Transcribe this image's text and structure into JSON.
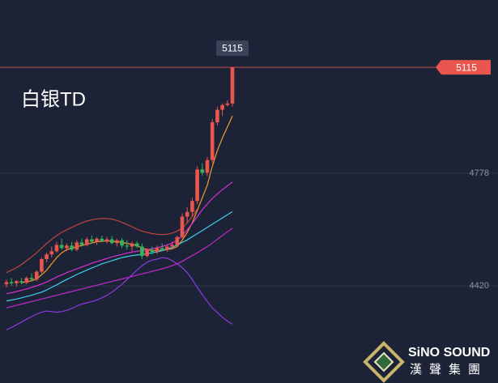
{
  "chart_data": {
    "type": "candlestick",
    "title": "白银TD",
    "ylim": [
      4111,
      5329
    ],
    "yticks": [
      4420,
      4778
    ],
    "grid": true,
    "up_color": "#e9554f",
    "down_color": "#35b35a",
    "last_price": 5115,
    "last_price_color": "#e9554f",
    "open": [
      4425,
      4432,
      4428,
      4435,
      4430,
      4445,
      4440,
      4465,
      4505,
      4520,
      4530,
      4550,
      4540,
      4548,
      4535,
      4558,
      4550,
      4568,
      4560,
      4570,
      4562,
      4568,
      4556,
      4565,
      4548,
      4545,
      4555,
      4545,
      4515,
      4535,
      4528,
      4540,
      4535,
      4545,
      4550,
      4575,
      4640,
      4655,
      4690,
      4790,
      4780,
      4820,
      4940,
      4980,
      4995,
      5000
    ],
    "high": [
      4440,
      4445,
      4438,
      4445,
      4450,
      4460,
      4470,
      4510,
      4525,
      4545,
      4560,
      4570,
      4555,
      4560,
      4565,
      4570,
      4575,
      4580,
      4575,
      4580,
      4575,
      4578,
      4570,
      4572,
      4565,
      4560,
      4562,
      4555,
      4540,
      4545,
      4548,
      4555,
      4550,
      4560,
      4580,
      4650,
      4670,
      4700,
      4800,
      4810,
      4830,
      4950,
      4990,
      5000,
      5010,
      5115
    ],
    "low": [
      4415,
      4420,
      4418,
      4425,
      4425,
      4435,
      4435,
      4460,
      4495,
      4510,
      4525,
      4535,
      4530,
      4530,
      4530,
      4545,
      4545,
      4555,
      4550,
      4558,
      4555,
      4552,
      4545,
      4540,
      4535,
      4530,
      4540,
      4505,
      4510,
      4520,
      4522,
      4530,
      4528,
      4535,
      4545,
      4570,
      4620,
      4640,
      4680,
      4770,
      4770,
      4810,
      4930,
      4960,
      4990,
      4990
    ],
    "close": [
      4432,
      4428,
      4435,
      4430,
      4445,
      4440,
      4465,
      4505,
      4520,
      4530,
      4550,
      4540,
      4548,
      4535,
      4558,
      4550,
      4568,
      4560,
      4570,
      4562,
      4568,
      4556,
      4565,
      4548,
      4545,
      4555,
      4545,
      4515,
      4535,
      4528,
      4540,
      4535,
      4545,
      4550,
      4575,
      4640,
      4655,
      4690,
      4790,
      4780,
      4820,
      4940,
      4980,
      4995,
      5000,
      5115
    ],
    "series": [
      {
        "color": "#f39a2c",
        "values": [
          null,
          null,
          null,
          4430,
          4433,
          4436,
          4442,
          4455,
          4470,
          4490,
          4510,
          4525,
          4535,
          4540,
          4545,
          4548,
          4552,
          4556,
          4560,
          4562,
          4563,
          4562,
          4560,
          4558,
          4555,
          4552,
          4548,
          4540,
          4535,
          4532,
          4532,
          4533,
          4535,
          4538,
          4545,
          4565,
          4590,
          4620,
          4660,
          4700,
          4740,
          4800,
          4850,
          4890,
          4925,
          4960
        ]
      },
      {
        "color": "#3fd0e8",
        "values": [
          4372,
          4375,
          4378,
          4382,
          4386,
          4390,
          4395,
          4400,
          4407,
          4415,
          4423,
          4432,
          4440,
          4448,
          4456,
          4463,
          4470,
          4477,
          4483,
          4490,
          4495,
          4500,
          4505,
          4510,
          4513,
          4516,
          4518,
          4520,
          4522,
          4525,
          4528,
          4532,
          4537,
          4542,
          4550,
          4558,
          4566,
          4576,
          4586,
          4596,
          4606,
          4616,
          4626,
          4636,
          4646,
          4656
        ]
      },
      {
        "color": "#d62fd6",
        "values": [
          4395,
          4398,
          4402,
          4406,
          4410,
          4415,
          4420,
          4426,
          4432,
          4440,
          4448,
          4455,
          4462,
          4468,
          4474,
          4480,
          4486,
          4492,
          4497,
          4502,
          4507,
          4512,
          4516,
          4520,
          4524,
          4527,
          4530,
          4532,
          4535,
          4538,
          4541,
          4545,
          4550,
          4556,
          4565,
          4580,
          4598,
          4618,
          4640,
          4662,
          4680,
          4698,
          4712,
          4726,
          4738,
          4750
        ]
      },
      {
        "color": "#c428c8",
        "values": [
          4350,
          4354,
          4358,
          4362,
          4366,
          4370,
          4374,
          4378,
          4382,
          4386,
          4390,
          4394,
          4398,
          4402,
          4406,
          4410,
          4414,
          4418,
          4422,
          4426,
          4430,
          4434,
          4438,
          4442,
          4446,
          4450,
          4454,
          4458,
          4462,
          4466,
          4470,
          4474,
          4479,
          4484,
          4490,
          4498,
          4507,
          4516,
          4525,
          4535,
          4545,
          4556,
          4568,
          4580,
          4592,
          4603
        ]
      },
      {
        "color": "#c0443f",
        "values": [
          4462,
          4470,
          4478,
          4488,
          4500,
          4512,
          4525,
          4540,
          4555,
          4568,
          4580,
          4590,
          4598,
          4606,
          4614,
          4620,
          4626,
          4630,
          4633,
          4634,
          4634,
          4632,
          4628,
          4622,
          4615,
          4608,
          4600,
          4594,
          4590,
          4586,
          4584,
          4583,
          4584,
          4588,
          4594,
          4604,
          4620,
          4640,
          4665,
          null,
          null,
          null,
          null,
          null,
          null,
          null
        ]
      },
      {
        "color": "#8a3be0",
        "values": [
          4280,
          4288,
          4296,
          4305,
          4314,
          4322,
          4330,
          4336,
          4340,
          4338,
          4336,
          4338,
          4342,
          4348,
          4356,
          4362,
          4366,
          4370,
          4375,
          4382,
          4390,
          4400,
          4412,
          4425,
          4440,
          4455,
          4470,
          4484,
          4495,
          4502,
          4505,
          4510,
          4508,
          4500,
          4490,
          4478,
          4462,
          4440,
          4415,
          4392,
          4370,
          4350,
          4335,
          4320,
          4308,
          4298
        ]
      }
    ]
  },
  "watermark": {
    "brand": "SiNO SOUND",
    "subtitle": "漢聲集團"
  }
}
